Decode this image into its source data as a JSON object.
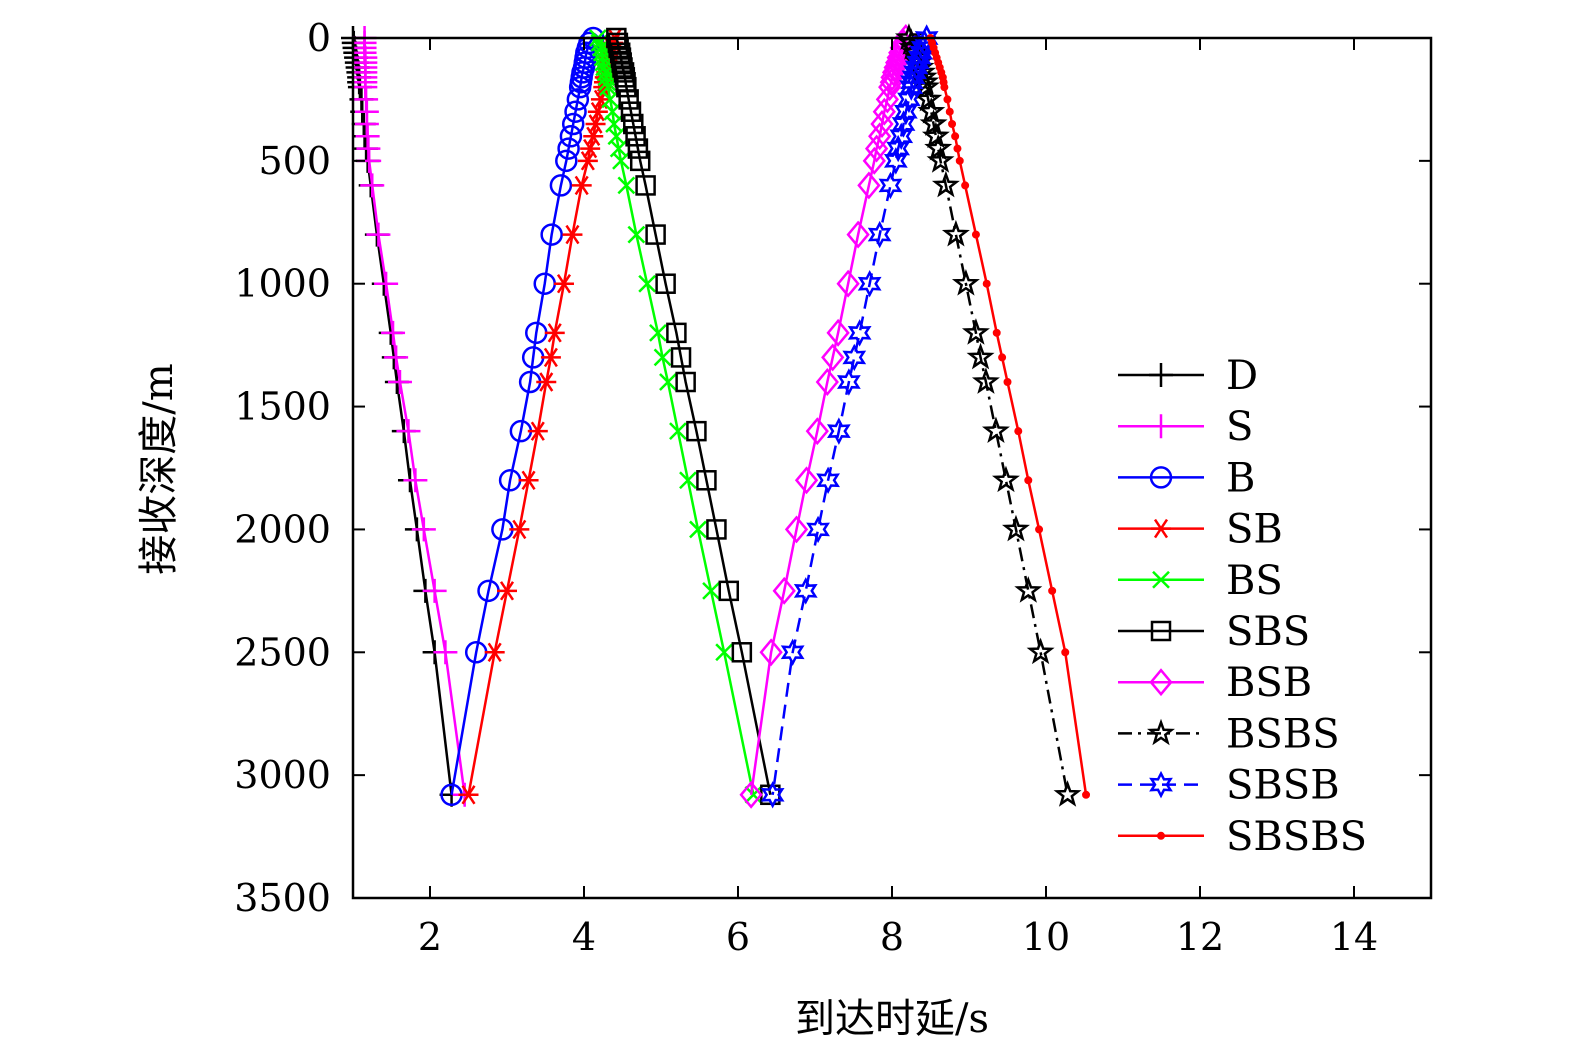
{
  "chart_data": {
    "type": "line",
    "title": "",
    "xlabel": "到达时延/s",
    "ylabel": "接收深度/m",
    "xlim": [
      1,
      15
    ],
    "ylim": [
      0,
      3500
    ],
    "y_inverted": true,
    "xticks": [
      2,
      4,
      6,
      8,
      10,
      12,
      14
    ],
    "xtick_labels": [
      "2",
      "4",
      "6",
      "8",
      "10",
      "12",
      "14"
    ],
    "yticks": [
      0,
      500,
      1000,
      1500,
      2000,
      2500,
      3000,
      3500
    ],
    "ytick_labels": [
      "0",
      "500",
      "1000",
      "1500",
      "2000",
      "2500",
      "3000",
      "3500"
    ],
    "grid": false,
    "legend_position": "right",
    "depths": [
      0,
      20,
      40,
      60,
      80,
      100,
      120,
      140,
      160,
      180,
      200,
      250,
      300,
      350,
      400,
      450,
      500,
      600,
      800,
      1000,
      1200,
      1300,
      1400,
      1600,
      1800,
      2000,
      2250,
      2500,
      3080
    ],
    "series": [
      {
        "name": "D",
        "color": "#000000",
        "marker": "plus",
        "dash": "solid",
        "values": [
          1.0,
          1.01,
          1.02,
          1.03,
          1.04,
          1.05,
          1.06,
          1.07,
          1.08,
          1.08,
          1.09,
          1.11,
          1.12,
          1.14,
          1.15,
          1.17,
          1.19,
          1.23,
          1.31,
          1.4,
          1.49,
          1.53,
          1.57,
          1.66,
          1.74,
          1.83,
          1.94,
          2.06,
          2.28
        ]
      },
      {
        "name": "S",
        "color": "#ff00ff",
        "marker": "plus",
        "dash": "solid",
        "values": [
          1.15,
          1.15,
          1.15,
          1.15,
          1.16,
          1.16,
          1.16,
          1.16,
          1.16,
          1.16,
          1.16,
          1.17,
          1.18,
          1.18,
          1.19,
          1.2,
          1.21,
          1.25,
          1.33,
          1.43,
          1.52,
          1.56,
          1.61,
          1.72,
          1.81,
          1.92,
          2.06,
          2.2,
          2.45
        ]
      },
      {
        "name": "B",
        "color": "#0000ff",
        "marker": "circle",
        "dash": "solid",
        "values": [
          4.12,
          4.07,
          4.05,
          4.03,
          4.02,
          4.01,
          4.0,
          3.98,
          3.97,
          3.96,
          3.95,
          3.92,
          3.89,
          3.86,
          3.83,
          3.8,
          3.77,
          3.7,
          3.58,
          3.49,
          3.38,
          3.34,
          3.3,
          3.18,
          3.04,
          2.94,
          2.76,
          2.6,
          2.28
        ]
      },
      {
        "name": "SB",
        "color": "#ff0000",
        "marker": "asterisk",
        "dash": "solid",
        "values": [
          4.4,
          4.38,
          4.36,
          4.35,
          4.33,
          4.32,
          4.3,
          4.29,
          4.27,
          4.26,
          4.25,
          4.22,
          4.18,
          4.15,
          4.12,
          4.08,
          4.05,
          3.97,
          3.85,
          3.74,
          3.62,
          3.57,
          3.51,
          3.4,
          3.28,
          3.16,
          3.0,
          2.84,
          2.5
        ]
      },
      {
        "name": "BS",
        "color": "#00ff00",
        "marker": "x",
        "dash": "solid",
        "values": [
          4.18,
          4.2,
          4.22,
          4.23,
          4.24,
          4.25,
          4.26,
          4.28,
          4.29,
          4.3,
          4.31,
          4.34,
          4.37,
          4.39,
          4.42,
          4.45,
          4.48,
          4.55,
          4.68,
          4.82,
          4.96,
          5.02,
          5.09,
          5.22,
          5.35,
          5.48,
          5.65,
          5.82,
          6.2
        ]
      },
      {
        "name": "SBS",
        "color": "#000000",
        "marker": "square",
        "dash": "solid",
        "values": [
          4.42,
          4.44,
          4.45,
          4.47,
          4.48,
          4.49,
          4.5,
          4.52,
          4.53,
          4.54,
          4.55,
          4.58,
          4.61,
          4.64,
          4.67,
          4.7,
          4.73,
          4.8,
          4.93,
          5.06,
          5.2,
          5.26,
          5.32,
          5.46,
          5.59,
          5.72,
          5.88,
          6.05,
          6.42
        ]
      },
      {
        "name": "BSB",
        "color": "#ff00ff",
        "marker": "diamond",
        "dash": "solid",
        "values": [
          8.18,
          8.15,
          8.12,
          8.1,
          8.08,
          8.06,
          8.04,
          8.02,
          8.0,
          7.99,
          7.97,
          7.94,
          7.9,
          7.87,
          7.84,
          7.8,
          7.77,
          7.7,
          7.56,
          7.43,
          7.3,
          7.23,
          7.16,
          7.03,
          6.89,
          6.76,
          6.6,
          6.43,
          6.17
        ]
      },
      {
        "name": "BSBS",
        "color": "#000000",
        "marker": "star",
        "dash": "dashdot",
        "values": [
          8.22,
          8.25,
          8.27,
          8.3,
          8.33,
          8.35,
          8.37,
          8.39,
          8.41,
          8.43,
          8.44,
          8.47,
          8.51,
          8.54,
          8.57,
          8.6,
          8.63,
          8.7,
          8.83,
          8.96,
          9.09,
          9.15,
          9.22,
          9.35,
          9.48,
          9.61,
          9.77,
          9.93,
          10.28
        ]
      },
      {
        "name": "SBSB",
        "color": "#0000ff",
        "marker": "hexagram",
        "dash": "dashed",
        "values": [
          8.45,
          8.42,
          8.4,
          8.38,
          8.36,
          8.34,
          8.32,
          8.3,
          8.28,
          8.26,
          8.25,
          8.22,
          8.18,
          8.15,
          8.12,
          8.08,
          8.05,
          7.98,
          7.84,
          7.71,
          7.58,
          7.51,
          7.44,
          7.31,
          7.17,
          7.04,
          6.88,
          6.71,
          6.45
        ]
      },
      {
        "name": "SBSBS",
        "color": "#ff0000",
        "marker": "dot",
        "dash": "solid",
        "values": [
          8.5,
          8.52,
          8.54,
          8.56,
          8.58,
          8.6,
          8.62,
          8.64,
          8.66,
          8.67,
          8.68,
          8.72,
          8.75,
          8.78,
          8.82,
          8.85,
          8.88,
          8.95,
          9.09,
          9.23,
          9.36,
          9.43,
          9.5,
          9.64,
          9.77,
          9.91,
          10.08,
          10.25,
          10.52
        ]
      }
    ]
  }
}
